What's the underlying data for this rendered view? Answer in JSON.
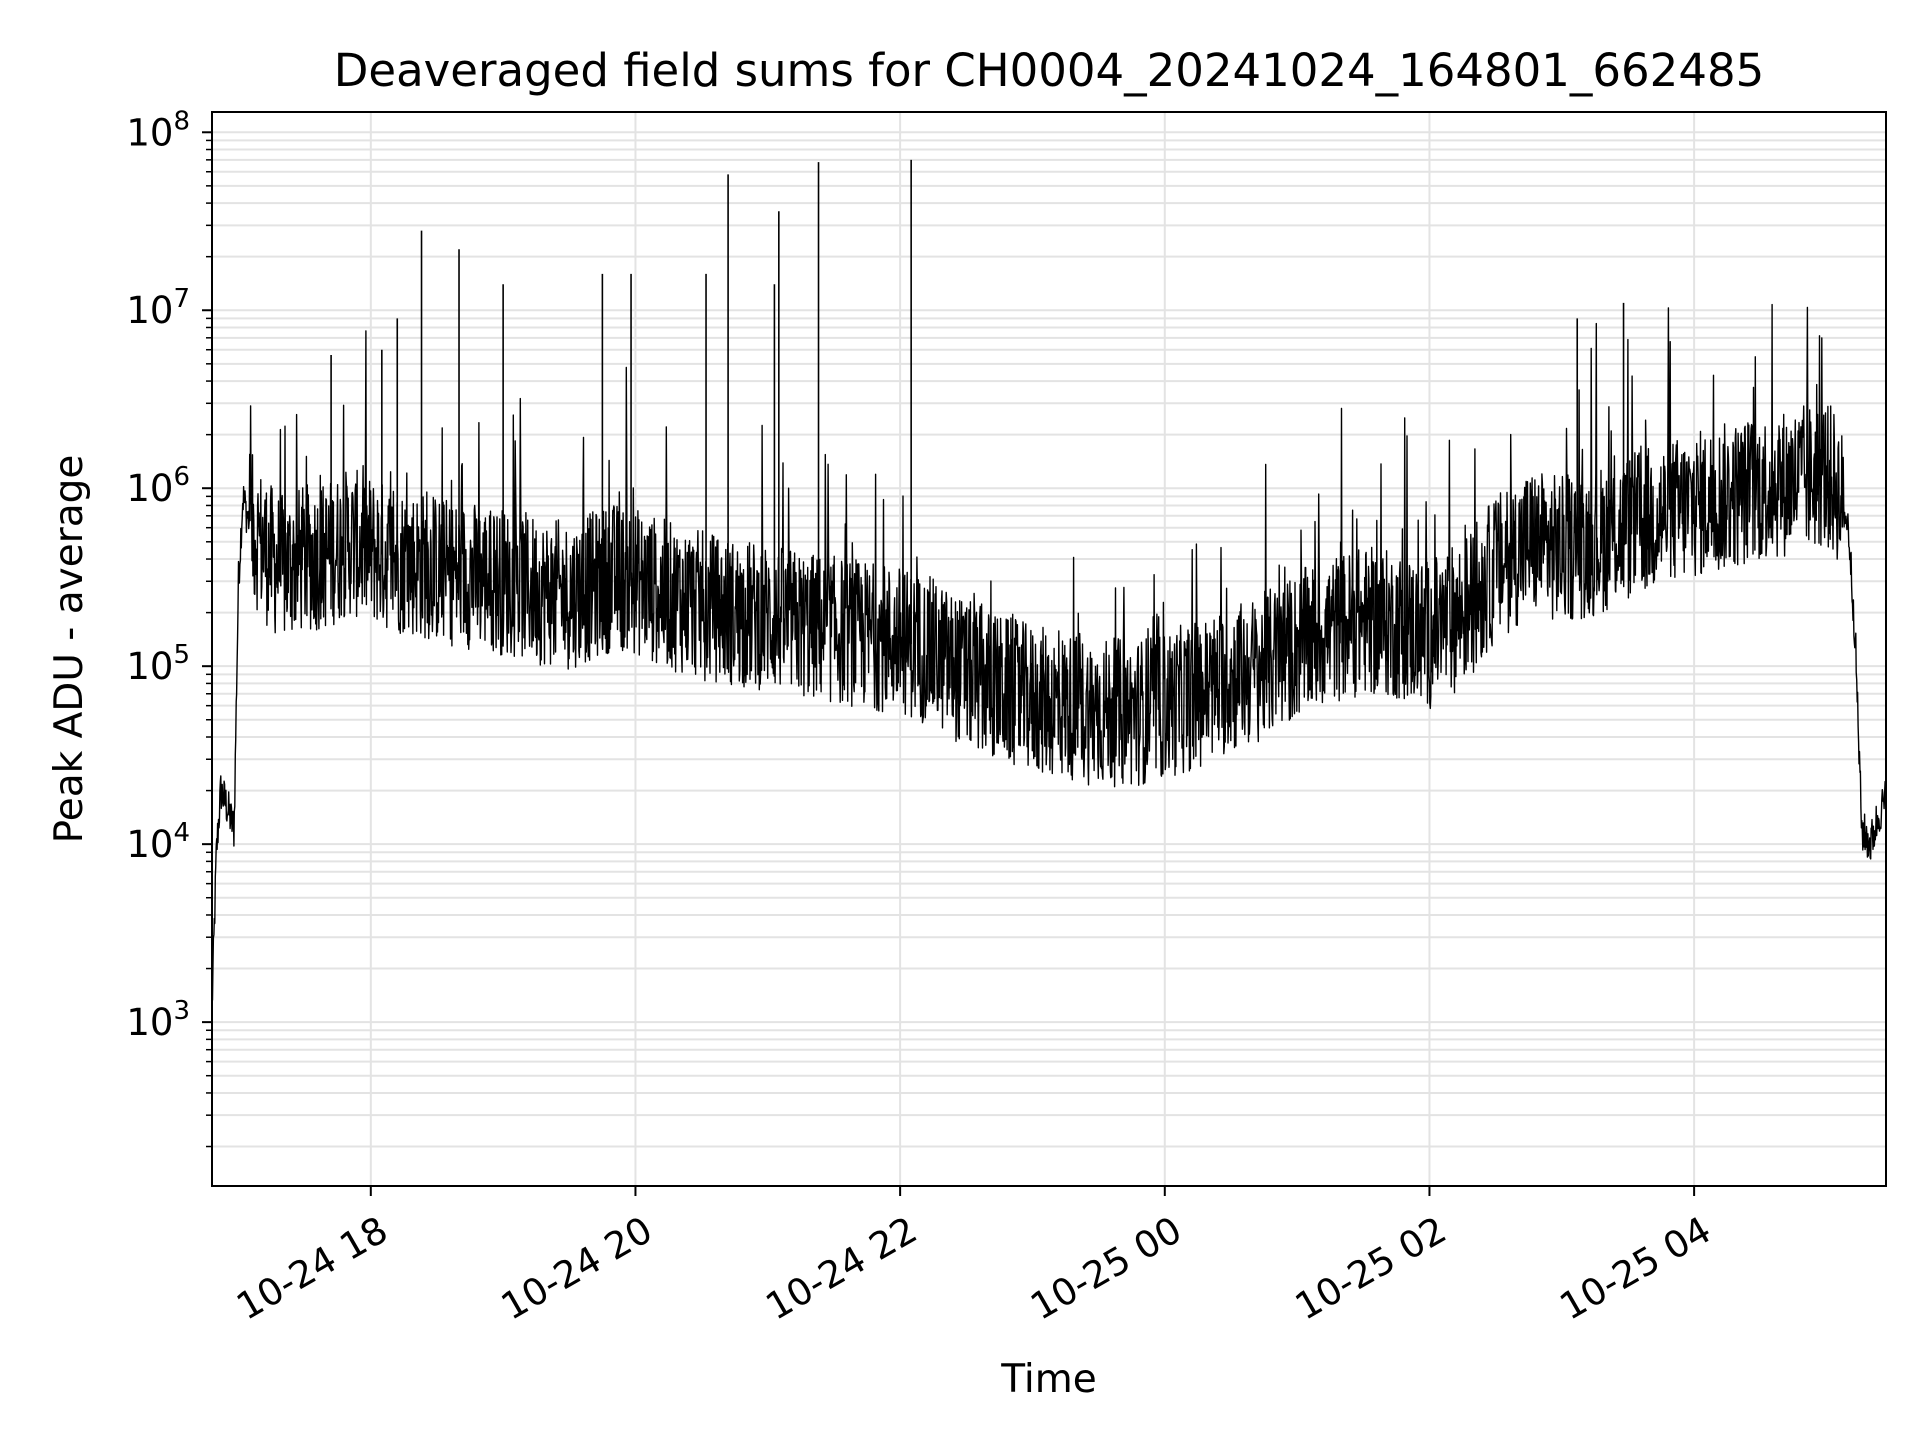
{
  "chart_data": {
    "type": "line",
    "title": "Deaveraged field sums for CH0004_20241024_164801_662485",
    "xlabel": "Time",
    "ylabel": "Peak ADU - average",
    "yscale": "log",
    "ylim": [
      120,
      130000000
    ],
    "xlim": [
      "2024-10-24 16:48",
      "2024-10-25 05:27"
    ],
    "grid": true,
    "line_color": "#000000",
    "x_ticks": [
      {
        "value": "2024-10-24 18:00",
        "label": "10-24 18"
      },
      {
        "value": "2024-10-24 20:00",
        "label": "10-24 20"
      },
      {
        "value": "2024-10-24 22:00",
        "label": "10-24 22"
      },
      {
        "value": "2024-10-25 00:00",
        "label": "10-25 00"
      },
      {
        "value": "2024-10-25 02:00",
        "label": "10-25 02"
      },
      {
        "value": "2024-10-25 04:00",
        "label": "10-25 04"
      }
    ],
    "y_ticks": [
      {
        "value": 1000,
        "base": "10",
        "exp": "3"
      },
      {
        "value": 10000,
        "base": "10",
        "exp": "4"
      },
      {
        "value": 100000,
        "base": "10",
        "exp": "5"
      },
      {
        "value": 1000000,
        "base": "10",
        "exp": "6"
      },
      {
        "value": 10000000,
        "base": "10",
        "exp": "7"
      },
      {
        "value": 100000000,
        "base": "10",
        "exp": "8"
      }
    ],
    "series": [
      {
        "x": [
          "2024-10-24 16:48",
          "2024-10-24 16:50",
          "2024-10-24 16:52",
          "2024-10-24 16:55",
          "2024-10-24 16:58",
          "2024-10-24 17:00",
          "2024-10-24 17:02",
          "2024-10-24 17:04",
          "2024-10-24 17:06",
          "2024-10-24 17:10",
          "2024-10-24 17:15",
          "2024-10-24 17:20",
          "2024-10-24 17:25",
          "2024-10-24 17:30",
          "2024-10-24 17:40",
          "2024-10-24 17:50",
          "2024-10-24 18:00",
          "2024-10-24 18:10",
          "2024-10-24 18:20",
          "2024-10-24 18:30",
          "2024-10-24 18:40",
          "2024-10-24 18:50",
          "2024-10-24 19:00",
          "2024-10-24 19:10",
          "2024-10-24 19:20",
          "2024-10-24 19:30",
          "2024-10-24 19:40",
          "2024-10-24 19:50",
          "2024-10-24 20:00",
          "2024-10-24 20:15",
          "2024-10-24 20:30",
          "2024-10-24 20:45",
          "2024-10-24 21:00",
          "2024-10-24 21:15",
          "2024-10-24 21:30",
          "2024-10-24 21:45",
          "2024-10-24 22:00",
          "2024-10-24 22:15",
          "2024-10-24 22:30",
          "2024-10-24 22:45",
          "2024-10-24 23:00",
          "2024-10-24 23:15",
          "2024-10-24 23:30",
          "2024-10-24 23:45",
          "2024-10-25 00:00",
          "2024-10-25 00:15",
          "2024-10-25 00:30",
          "2024-10-25 00:45",
          "2024-10-25 01:00",
          "2024-10-25 01:15",
          "2024-10-25 01:30",
          "2024-10-25 01:45",
          "2024-10-25 02:00",
          "2024-10-25 02:15",
          "2024-10-25 02:30",
          "2024-10-25 02:45",
          "2024-10-25 03:00",
          "2024-10-25 03:15",
          "2024-10-25 03:30",
          "2024-10-25 03:45",
          "2024-10-25 04:00",
          "2024-10-25 04:15",
          "2024-10-25 04:30",
          "2024-10-25 04:45",
          "2024-10-25 05:00",
          "2024-10-25 05:05",
          "2024-10-25 05:10",
          "2024-10-25 05:13",
          "2024-10-25 05:16",
          "2024-10-25 05:20",
          "2024-10-25 05:24",
          "2024-10-25 05:27"
        ],
        "y": [
          1200,
          9000,
          20000,
          16000,
          12000,
          300000,
          900000,
          700000,
          600000,
          500000,
          400000,
          350000,
          380000,
          400000,
          420000,
          500000,
          450000,
          400000,
          380000,
          350000,
          330000,
          320000,
          300000,
          280000,
          260000,
          250000,
          280000,
          320000,
          300000,
          250000,
          220000,
          200000,
          190000,
          170000,
          160000,
          150000,
          140000,
          120000,
          90000,
          75000,
          65000,
          60000,
          55000,
          55000,
          60000,
          70000,
          85000,
          100000,
          130000,
          160000,
          180000,
          170000,
          150000,
          200000,
          350000,
          500000,
          450000,
          500000,
          600000,
          700000,
          800000,
          900000,
          1000000,
          1100000,
          1200000,
          1000000,
          600000,
          150000,
          12000,
          10000,
          15000,
          18000
        ]
      }
    ],
    "spikes": [
      {
        "x": "2024-10-24 17:42",
        "y": 5600000
      },
      {
        "x": "2024-10-24 18:05",
        "y": 6000000
      },
      {
        "x": "2024-10-24 18:12",
        "y": 9000000
      },
      {
        "x": "2024-10-24 18:23",
        "y": 28000000
      },
      {
        "x": "2024-10-24 18:40",
        "y": 22000000
      },
      {
        "x": "2024-10-24 19:00",
        "y": 14000000
      },
      {
        "x": "2024-10-24 19:45",
        "y": 16000000
      },
      {
        "x": "2024-10-24 19:58",
        "y": 16000000
      },
      {
        "x": "2024-10-24 20:32",
        "y": 16000000
      },
      {
        "x": "2024-10-24 20:42",
        "y": 58000000
      },
      {
        "x": "2024-10-24 21:03",
        "y": 14000000
      },
      {
        "x": "2024-10-24 21:05",
        "y": 36000000
      },
      {
        "x": "2024-10-24 21:23",
        "y": 68000000
      },
      {
        "x": "2024-10-24 22:05",
        "y": 70000000
      },
      {
        "x": "2024-10-25 03:07",
        "y": 9000000
      },
      {
        "x": "2024-10-25 03:28",
        "y": 11000000
      }
    ]
  }
}
